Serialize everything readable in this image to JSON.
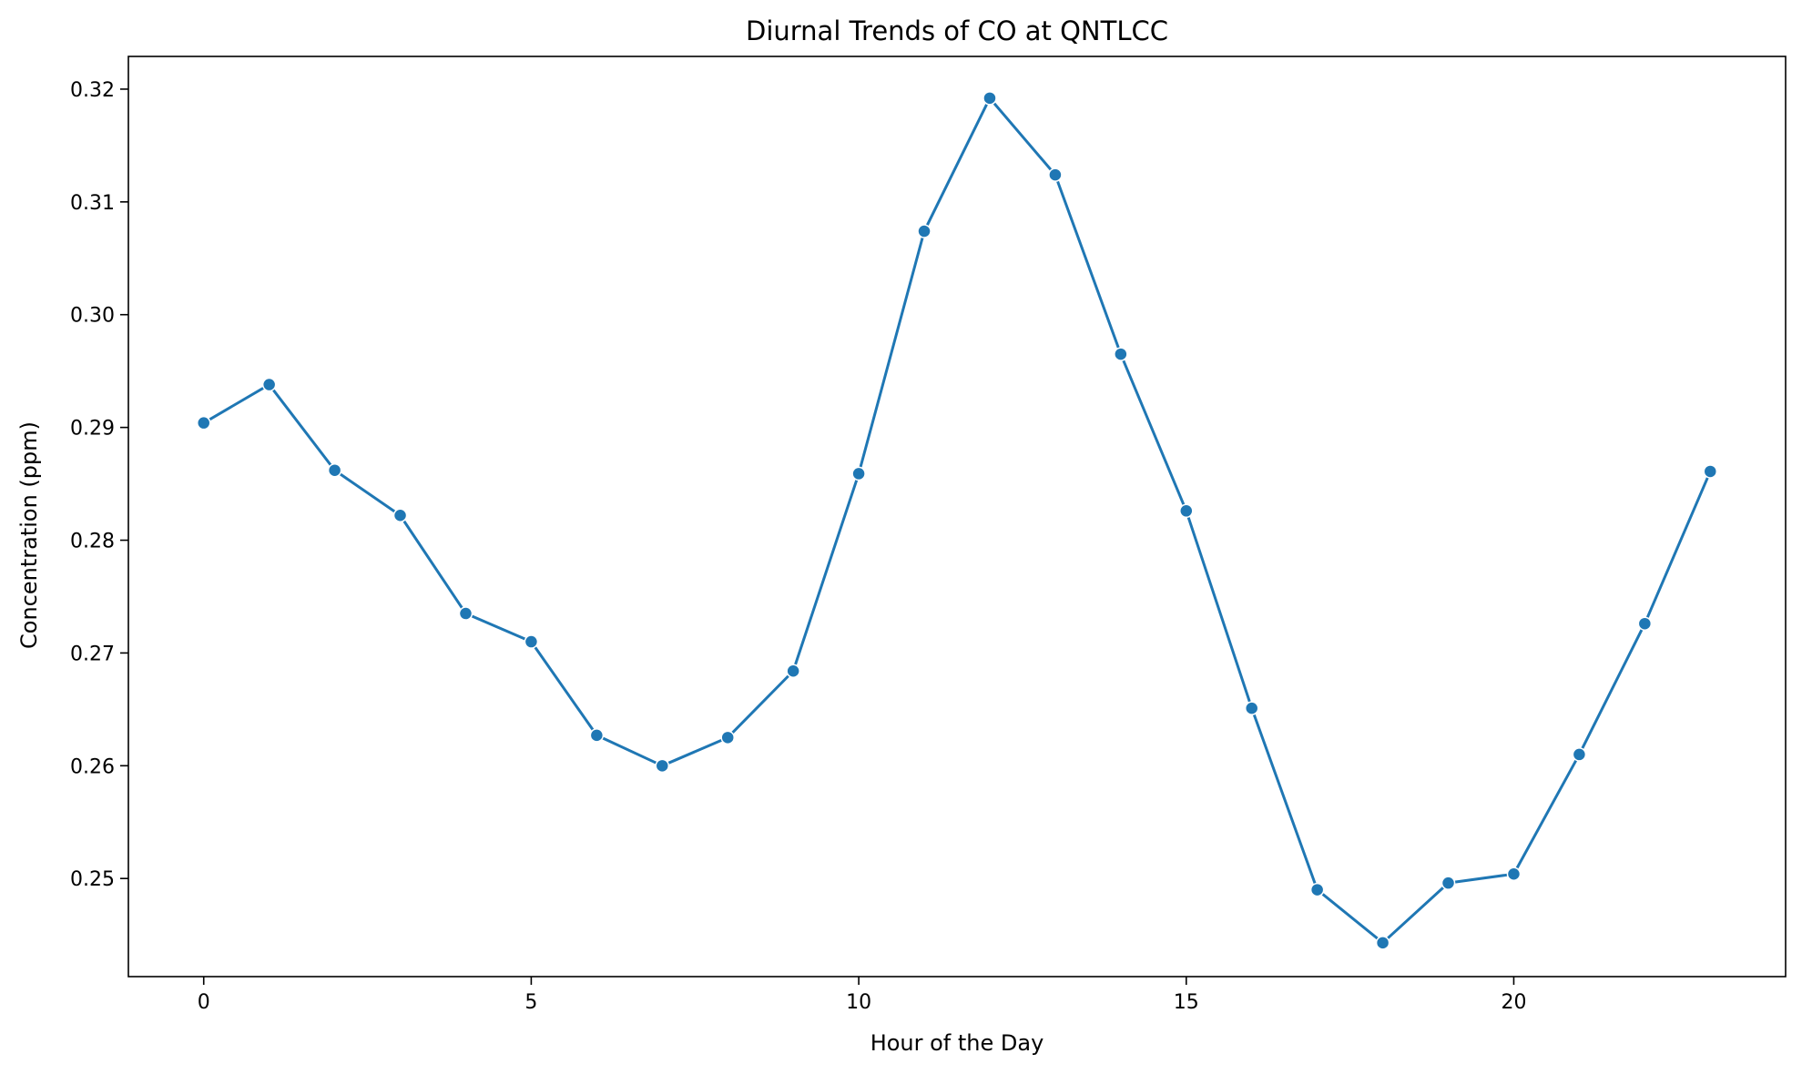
{
  "chart_data": {
    "type": "line",
    "title": "Diurnal Trends of CO at QNTLCC",
    "xlabel": "Hour of the Day",
    "ylabel": "Concentration (ppm)",
    "xlim": [
      -1.15,
      24.15
    ],
    "ylim": [
      0.2413,
      0.3229
    ],
    "xticks": [
      0,
      5,
      10,
      15,
      20
    ],
    "xtick_labels": [
      "0",
      "5",
      "10",
      "15",
      "20"
    ],
    "yticks": [
      0.25,
      0.26,
      0.27,
      0.28,
      0.29,
      0.3,
      0.31,
      0.32
    ],
    "ytick_labels": [
      "0.25",
      "0.26",
      "0.27",
      "0.28",
      "0.29",
      "0.30",
      "0.31",
      "0.32"
    ],
    "grid": false,
    "legend": "none",
    "series": [
      {
        "color": "#1f77b4",
        "marker": "circle",
        "x": [
          0,
          1,
          2,
          3,
          4,
          5,
          6,
          7,
          8,
          9,
          10,
          11,
          12,
          13,
          14,
          15,
          16,
          17,
          18,
          19,
          20,
          21,
          22,
          23
        ],
        "y": [
          0.2904,
          0.2938,
          0.2862,
          0.2822,
          0.2735,
          0.271,
          0.2627,
          0.26,
          0.2625,
          0.2684,
          0.2859,
          0.3074,
          0.3192,
          0.3124,
          0.2965,
          0.2826,
          0.2651,
          0.249,
          0.2443,
          0.2496,
          0.2504,
          0.261,
          0.2726,
          0.2861
        ]
      }
    ]
  }
}
